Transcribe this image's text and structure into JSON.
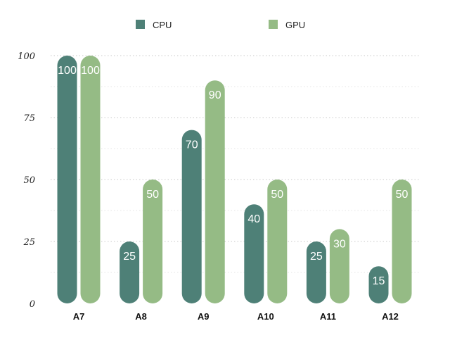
{
  "chart_data": {
    "type": "bar",
    "categories": [
      "A7",
      "A8",
      "A9",
      "A10",
      "A11",
      "A12"
    ],
    "series": [
      {
        "name": "CPU",
        "values": [
          100,
          25,
          70,
          40,
          25,
          15
        ],
        "color": "#4e8077"
      },
      {
        "name": "GPU",
        "values": [
          100,
          50,
          90,
          50,
          30,
          50
        ],
        "color": "#95bb85"
      }
    ],
    "yticks": [
      0,
      25,
      50,
      75,
      100
    ],
    "ylim": [
      0,
      100
    ],
    "grid": true,
    "legend_position": "top"
  }
}
